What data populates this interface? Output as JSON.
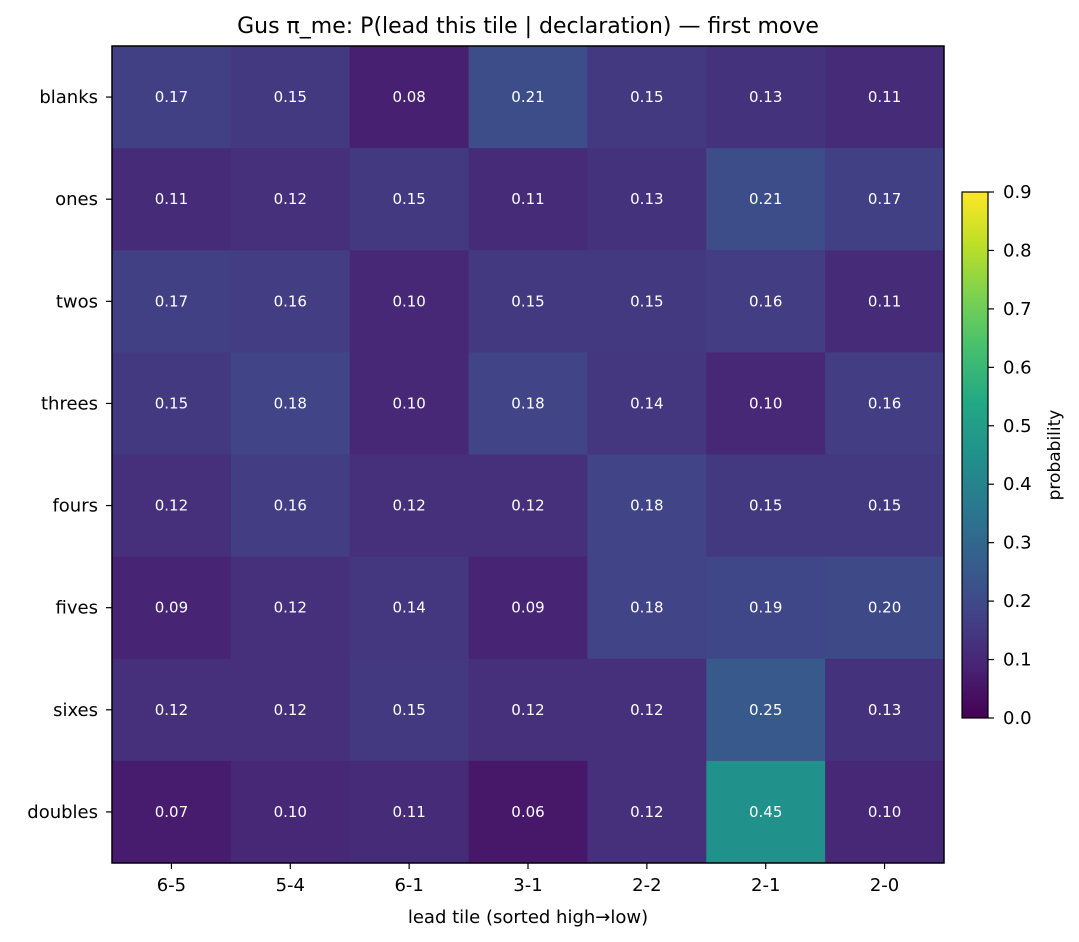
{
  "chart_data": {
    "type": "heatmap",
    "title": "Gus π_me: P(lead this tile | declaration) — first move",
    "xlabel": "lead tile (sorted high→low)",
    "ylabel": "",
    "x_categories": [
      "6-5",
      "5-4",
      "6-1",
      "3-1",
      "2-2",
      "2-1",
      "2-0"
    ],
    "y_categories": [
      "blanks",
      "ones",
      "twos",
      "threes",
      "fours",
      "fives",
      "sixes",
      "doubles"
    ],
    "values": [
      [
        0.17,
        0.15,
        0.08,
        0.21,
        0.15,
        0.13,
        0.11
      ],
      [
        0.11,
        0.12,
        0.15,
        0.11,
        0.13,
        0.21,
        0.17
      ],
      [
        0.17,
        0.16,
        0.1,
        0.15,
        0.15,
        0.16,
        0.11
      ],
      [
        0.15,
        0.18,
        0.1,
        0.18,
        0.14,
        0.1,
        0.16
      ],
      [
        0.12,
        0.16,
        0.12,
        0.12,
        0.18,
        0.15,
        0.15
      ],
      [
        0.09,
        0.12,
        0.14,
        0.09,
        0.18,
        0.19,
        0.2
      ],
      [
        0.12,
        0.12,
        0.15,
        0.12,
        0.12,
        0.25,
        0.13
      ],
      [
        0.07,
        0.1,
        0.11,
        0.06,
        0.12,
        0.45,
        0.1
      ]
    ],
    "value_labels": [
      [
        "0.17",
        "0.15",
        "0.08",
        "0.21",
        "0.15",
        "0.13",
        "0.11"
      ],
      [
        "0.11",
        "0.12",
        "0.15",
        "0.11",
        "0.13",
        "0.21",
        "0.17"
      ],
      [
        "0.17",
        "0.16",
        "0.10",
        "0.15",
        "0.15",
        "0.16",
        "0.11"
      ],
      [
        "0.15",
        "0.18",
        "0.10",
        "0.18",
        "0.14",
        "0.10",
        "0.16"
      ],
      [
        "0.12",
        "0.16",
        "0.12",
        "0.12",
        "0.18",
        "0.15",
        "0.15"
      ],
      [
        "0.09",
        "0.12",
        "0.14",
        "0.09",
        "0.18",
        "0.19",
        "0.20"
      ],
      [
        "0.12",
        "0.12",
        "0.15",
        "0.12",
        "0.12",
        "0.25",
        "0.13"
      ],
      [
        "0.07",
        "0.10",
        "0.11",
        "0.06",
        "0.12",
        "0.45",
        "0.10"
      ]
    ],
    "colormap": "viridis",
    "vmin": 0.0,
    "vmax": 0.9,
    "colorbar": {
      "label": "probability",
      "ticks": [
        0.0,
        0.1,
        0.2,
        0.3,
        0.4,
        0.5,
        0.6,
        0.7,
        0.8,
        0.9
      ],
      "tick_labels": [
        "0.0",
        "0.1",
        "0.2",
        "0.3",
        "0.4",
        "0.5",
        "0.6",
        "0.7",
        "0.8",
        "0.9"
      ]
    },
    "grid": false
  }
}
